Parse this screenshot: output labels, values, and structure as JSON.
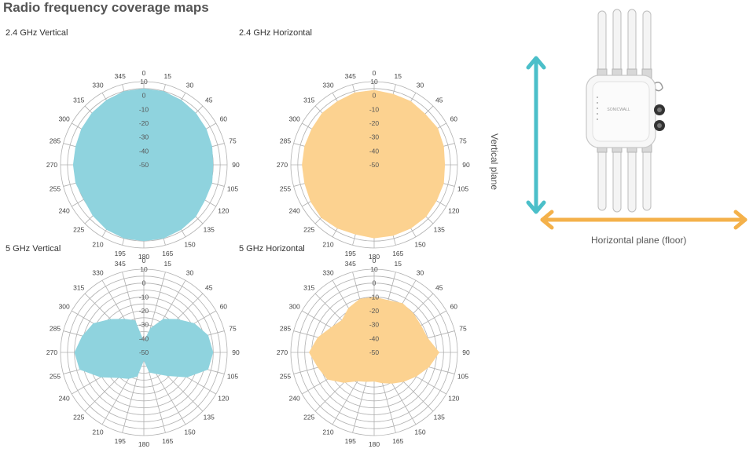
{
  "page_title": "Radio frequency coverage maps",
  "colors": {
    "vertical_fill": "#8fd3de",
    "horizontal_fill": "#fcd290",
    "vertical_arrow": "#4bbfc9",
    "horizontal_arrow": "#f4b14a",
    "grid": "#b0b0b0"
  },
  "device": {
    "vertical_plane_label": "Vertical plane",
    "horizontal_plane_label": "Horizontal plane (floor)",
    "brand_text": "SONICWALL"
  },
  "chart_data": [
    {
      "type": "radar",
      "title": "2.4 GHz Vertical",
      "color": "#8fd3de",
      "angles": [
        0,
        15,
        30,
        45,
        60,
        75,
        90,
        105,
        120,
        135,
        150,
        165,
        180,
        195,
        210,
        225,
        240,
        255,
        270,
        285,
        300,
        315,
        330,
        345
      ],
      "radial_ticks": [
        10,
        0,
        -10,
        -20,
        -30,
        -40,
        -50
      ],
      "rlim": [
        -50,
        10
      ],
      "values": [
        5,
        5,
        4,
        3,
        2,
        1,
        0,
        1,
        1,
        3,
        4,
        5,
        5,
        5,
        4,
        2,
        0,
        1,
        1,
        1,
        2,
        3,
        4,
        5
      ]
    },
    {
      "type": "radar",
      "title": "2.4 GHz Horizontal",
      "color": "#fcd290",
      "angles": [
        0,
        15,
        30,
        45,
        60,
        75,
        90,
        105,
        120,
        135,
        150,
        165,
        180,
        195,
        210,
        225,
        240,
        255,
        270,
        285,
        300,
        315,
        330,
        345
      ],
      "radial_ticks": [
        10,
        0,
        -10,
        -20,
        -30,
        -40,
        -50
      ],
      "rlim": [
        -50,
        10
      ],
      "values": [
        4,
        3,
        3,
        2,
        3,
        2,
        1,
        2,
        2,
        3,
        3,
        3,
        3,
        2,
        3,
        4,
        3,
        2,
        2,
        2,
        2,
        3,
        3,
        4
      ]
    },
    {
      "type": "radar",
      "title": "5 GHz Vertical",
      "color": "#8fd3de",
      "angles": [
        0,
        15,
        30,
        45,
        60,
        75,
        90,
        105,
        120,
        135,
        150,
        165,
        180,
        195,
        210,
        225,
        240,
        255,
        270,
        285,
        300,
        315,
        330,
        345
      ],
      "radial_ticks": [
        10,
        0,
        -10,
        -20,
        -30,
        -40,
        -50
      ],
      "rlim": [
        -50,
        10
      ],
      "values": [
        -42,
        -32,
        -22,
        -16,
        -8,
        -2,
        0,
        -2,
        -14,
        -26,
        -32,
        -35,
        -44,
        -32,
        -28,
        -24,
        -14,
        -2,
        0,
        -4,
        -8,
        -16,
        -22,
        -26
      ]
    },
    {
      "type": "radar",
      "title": "5 GHz Horizontal",
      "color": "#fcd290",
      "angles": [
        0,
        15,
        30,
        45,
        60,
        75,
        90,
        105,
        120,
        135,
        150,
        165,
        180,
        195,
        210,
        225,
        240,
        255,
        270,
        285,
        300,
        315,
        330,
        345
      ],
      "radial_ticks": [
        10,
        0,
        -10,
        -20,
        -30,
        -40,
        -50
      ],
      "rlim": [
        -50,
        10
      ],
      "values": [
        -10,
        -11,
        -9,
        -10,
        -11,
        -10,
        -3,
        -9,
        -15,
        -20,
        -24,
        -27,
        -29,
        -28,
        -26,
        -19,
        -11,
        -8,
        -3,
        -8,
        -14,
        -17,
        -13,
        -10
      ]
    }
  ]
}
